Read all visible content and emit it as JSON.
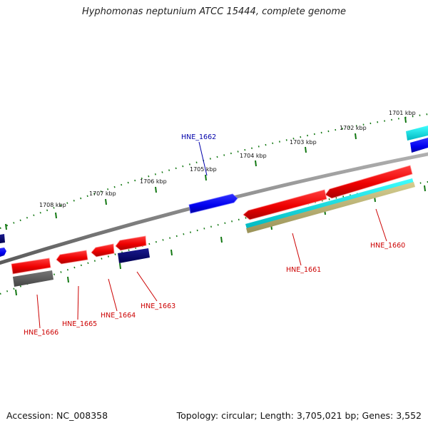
{
  "title": "Hyphomonas neptunium ATCC 15444, complete genome",
  "footer": {
    "accession": "Accession: NC_008358",
    "stats": "Topology: circular; Length: 3,705,021 bp; Genes: 3,552"
  },
  "scale_labels": [
    "1701 kbp",
    "1702 kbp",
    "1703 kbp",
    "1704 kbp",
    "1705 kbp",
    "1706 kbp",
    "1707 kbp",
    "1708 kbp"
  ],
  "gene_labels": [
    {
      "text": "HNE_1660",
      "color": "#cc0000"
    },
    {
      "text": "HNE_1661",
      "color": "#cc0000"
    },
    {
      "text": "HNE_1662",
      "color": "#0000aa"
    },
    {
      "text": "HNE_1663",
      "color": "#cc0000"
    },
    {
      "text": "HNE_1664",
      "color": "#cc0000"
    },
    {
      "text": "HNE_1665",
      "color": "#cc0000"
    },
    {
      "text": "HNE_1666",
      "color": "#cc0000"
    }
  ],
  "colors": {
    "forward_gene": "#ff0000",
    "reverse_gene": "#0000ff",
    "dark_gene": "#000080",
    "grey_gene": "#555555",
    "cyan_feature": "#00e0e0",
    "khaki_feature": "#b8b070",
    "backbone": "#808080",
    "ticks": "#117711"
  }
}
